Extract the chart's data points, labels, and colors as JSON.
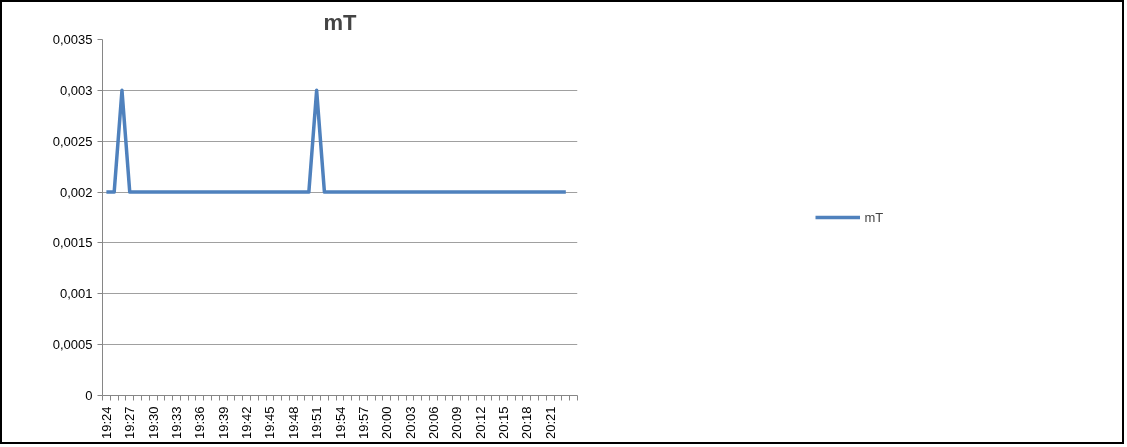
{
  "chart_data": {
    "type": "line",
    "title": "mT",
    "categories": [
      "19:24",
      null,
      null,
      "19:27",
      null,
      null,
      "19:30",
      null,
      null,
      "19:33",
      null,
      null,
      "19:36",
      null,
      null,
      "19:39",
      null,
      null,
      "19:42",
      null,
      null,
      "19:45",
      null,
      null,
      "19:48",
      null,
      null,
      "19:51",
      null,
      null,
      "19:54",
      null,
      null,
      "19:57",
      null,
      null,
      "20:00",
      null,
      null,
      "20:03",
      null,
      null,
      "20:06",
      null,
      null,
      "20:09",
      null,
      null,
      "20:12",
      null,
      null,
      "20:15",
      null,
      null,
      "20:18",
      null,
      null,
      "20:21",
      null,
      null,
      null
    ],
    "series": [
      {
        "name": "mT",
        "color": "#4f81bd",
        "values": [
          0.002,
          0.002,
          0.003,
          0.002,
          0.002,
          0.002,
          0.002,
          0.002,
          0.002,
          0.002,
          0.002,
          0.002,
          0.002,
          0.002,
          0.002,
          0.002,
          0.002,
          0.002,
          0.002,
          0.002,
          0.002,
          0.002,
          0.002,
          0.002,
          0.002,
          0.002,
          0.002,
          0.003,
          0.002,
          0.002,
          0.002,
          0.002,
          0.002,
          0.002,
          0.002,
          0.002,
          0.002,
          0.002,
          0.002,
          0.002,
          0.002,
          0.002,
          0.002,
          0.002,
          0.002,
          0.002,
          0.002,
          0.002,
          0.002,
          0.002,
          0.002,
          0.002,
          0.002,
          0.002,
          0.002,
          0.002,
          0.002,
          0.002,
          0.002,
          0.002,
          null
        ]
      }
    ],
    "ylim": [
      0,
      0.0035
    ],
    "yticks": [
      {
        "value": 0,
        "label": "0"
      },
      {
        "value": 0.0005,
        "label": "0,0005"
      },
      {
        "value": 0.001,
        "label": "0,001"
      },
      {
        "value": 0.0015,
        "label": "0,0015"
      },
      {
        "value": 0.002,
        "label": "0,002"
      },
      {
        "value": 0.0025,
        "label": "0,0025"
      },
      {
        "value": 0.003,
        "label": "0,003"
      },
      {
        "value": 0.0035,
        "label": "0,0035"
      }
    ],
    "grid": "y",
    "legend": "right",
    "marker": "none",
    "line_style": "solid"
  }
}
